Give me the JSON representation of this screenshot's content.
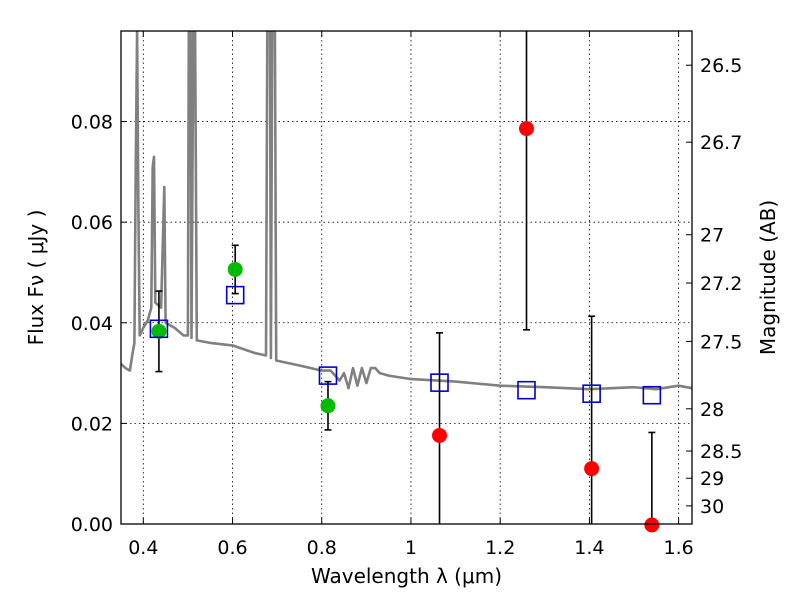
{
  "chart_data": {
    "type": "scatter",
    "xlabel": "Wavelength  λ (μm)",
    "ylabel": "Flux  Fν  ( μJy )",
    "y2label": "Magnitude (AB)",
    "xlim": [
      0.35,
      1.63
    ],
    "ylim": [
      0.0,
      0.098
    ],
    "grid": true,
    "xticks": [
      0.4,
      0.6,
      0.8,
      1.0,
      1.2,
      1.4,
      1.6
    ],
    "xtick_labels": [
      "0.4",
      "0.6",
      "0.8",
      "1",
      "1.2",
      "1.4",
      "1.6"
    ],
    "yticks": [
      0.0,
      0.02,
      0.04,
      0.06,
      0.08
    ],
    "ytick_labels": [
      "0.00",
      "0.02",
      "0.04",
      "0.06",
      "0.08"
    ],
    "y2ticks": [
      {
        "label": "26.5",
        "flux": 0.0912
      },
      {
        "label": "26.7",
        "flux": 0.0759
      },
      {
        "label": "27",
        "flux": 0.0575
      },
      {
        "label": "27.2",
        "flux": 0.0479
      },
      {
        "label": "27.5",
        "flux": 0.0363
      },
      {
        "label": "28",
        "flux": 0.0229
      },
      {
        "label": "28.5",
        "flux": 0.0145
      },
      {
        "label": "29",
        "flux": 0.0091
      },
      {
        "label": "30",
        "flux": 0.0036
      }
    ],
    "series": [
      {
        "color": "#00bb00",
        "marker": "filled-circle",
        "points": [
          {
            "x": 0.435,
            "y": 0.0383,
            "err": 0.008
          },
          {
            "x": 0.606,
            "y": 0.0506,
            "err": 0.0048
          },
          {
            "x": 0.814,
            "y": 0.0235,
            "err": 0.0048
          }
        ]
      },
      {
        "color": "#ff0000",
        "marker": "filled-circle",
        "points": [
          {
            "x": 1.064,
            "y": 0.0176,
            "err": 0.0204
          },
          {
            "x": 1.259,
            "y": 0.0786,
            "err": 0.04
          },
          {
            "x": 1.405,
            "y": 0.011,
            "err": 0.0303
          },
          {
            "x": 1.54,
            "y": -0.0002,
            "err": 0.0184
          }
        ]
      },
      {
        "color": "#0000cc",
        "marker": "open-square",
        "points": [
          {
            "x": 0.435,
            "y": 0.0388
          },
          {
            "x": 0.606,
            "y": 0.0455
          },
          {
            "x": 0.814,
            "y": 0.0295
          },
          {
            "x": 1.064,
            "y": 0.0281
          },
          {
            "x": 1.259,
            "y": 0.0266
          },
          {
            "x": 1.405,
            "y": 0.0259
          },
          {
            "x": 1.54,
            "y": 0.0256
          }
        ]
      }
    ],
    "model_spectrum": {
      "color": "#808080",
      "points": [
        [
          0.35,
          0.0318
        ],
        [
          0.36,
          0.031
        ],
        [
          0.37,
          0.0305
        ],
        [
          0.375,
          0.0335
        ],
        [
          0.38,
          0.036
        ],
        [
          0.383,
          0.07
        ],
        [
          0.386,
          0.098
        ],
        [
          0.389,
          0.062
        ],
        [
          0.392,
          0.0375
        ],
        [
          0.4,
          0.039
        ],
        [
          0.41,
          0.0405
        ],
        [
          0.418,
          0.043
        ],
        [
          0.421,
          0.071
        ],
        [
          0.424,
          0.073
        ],
        [
          0.427,
          0.044
        ],
        [
          0.44,
          0.043
        ],
        [
          0.447,
          0.067
        ],
        [
          0.45,
          0.04
        ],
        [
          0.47,
          0.039
        ],
        [
          0.49,
          0.0375
        ],
        [
          0.5,
          0.0375
        ],
        [
          0.502,
          0.098
        ],
        [
          0.506,
          0.098
        ],
        [
          0.508,
          0.037
        ],
        [
          0.512,
          0.098
        ],
        [
          0.516,
          0.098
        ],
        [
          0.52,
          0.0365
        ],
        [
          0.55,
          0.036
        ],
        [
          0.6,
          0.0355
        ],
        [
          0.65,
          0.034
        ],
        [
          0.675,
          0.0335
        ],
        [
          0.678,
          0.098
        ],
        [
          0.684,
          0.098
        ],
        [
          0.686,
          0.033
        ],
        [
          0.689,
          0.098
        ],
        [
          0.695,
          0.098
        ],
        [
          0.698,
          0.0325
        ],
        [
          0.75,
          0.0315
        ],
        [
          0.8,
          0.0305
        ],
        [
          0.82,
          0.0305
        ],
        [
          0.84,
          0.0285
        ],
        [
          0.85,
          0.03
        ],
        [
          0.86,
          0.027
        ],
        [
          0.87,
          0.031
        ],
        [
          0.88,
          0.0275
        ],
        [
          0.89,
          0.031
        ],
        [
          0.9,
          0.028
        ],
        [
          0.91,
          0.031
        ],
        [
          0.92,
          0.031
        ],
        [
          0.93,
          0.03
        ],
        [
          0.95,
          0.0295
        ],
        [
          1.0,
          0.0288
        ],
        [
          1.1,
          0.0283
        ],
        [
          1.2,
          0.0275
        ],
        [
          1.3,
          0.0272
        ],
        [
          1.4,
          0.0268
        ],
        [
          1.5,
          0.0272
        ],
        [
          1.55,
          0.0268
        ],
        [
          1.6,
          0.0275
        ],
        [
          1.63,
          0.027
        ]
      ]
    }
  }
}
